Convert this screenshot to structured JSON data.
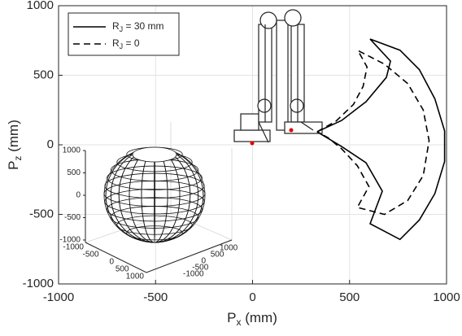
{
  "chart_data": {
    "type": "line",
    "xlabel": [
      "P",
      "x",
      " (mm)"
    ],
    "ylabel": [
      "P",
      "z",
      " (mm)"
    ],
    "xlim": [
      -1000,
      1000
    ],
    "ylim": [
      -1000,
      1000
    ],
    "xticks": [
      -1000,
      -500,
      0,
      500,
      1000
    ],
    "yticks": [
      -1000,
      -500,
      0,
      500,
      1000
    ],
    "grid": true,
    "legend": "upper left",
    "series": [
      {
        "name": [
          "R",
          "J",
          " = 30 mm"
        ],
        "color": "#000000",
        "dash": "solid",
        "x": [
          333,
          459,
          585,
          690,
          711,
          606,
          760,
          860,
          940,
          990,
          990,
          940,
          860,
          760,
          606,
          669,
          585,
          459,
          354,
          333
        ],
        "values": [
          94,
          175,
          310,
          485,
          602,
          760,
          680,
          540,
          330,
          100,
          -120,
          -350,
          -540,
          -680,
          -567,
          -333,
          -129,
          -12,
          76,
          94
        ]
      },
      {
        "name": [
          "R",
          "J",
          " = 0"
        ],
        "color": "#000000",
        "dash": "dashed",
        "x": [
          333,
          430,
          520,
          570,
          590,
          543,
          680,
          800,
          880,
          910,
          880,
          800,
          680,
          540,
          600,
          540,
          460,
          390,
          333
        ],
        "values": [
          94,
          170,
          290,
          420,
          560,
          678,
          580,
          440,
          250,
          30,
          -220,
          -400,
          -500,
          -450,
          -300,
          -150,
          -30,
          50,
          94
        ]
      }
    ],
    "inset": {
      "zticks": [
        1000,
        500,
        0,
        -500,
        -1000
      ],
      "xticks": [
        -1000,
        -500,
        0,
        500,
        1000
      ],
      "yticks": [
        -1000,
        -500,
        0,
        500,
        1000
      ]
    }
  }
}
